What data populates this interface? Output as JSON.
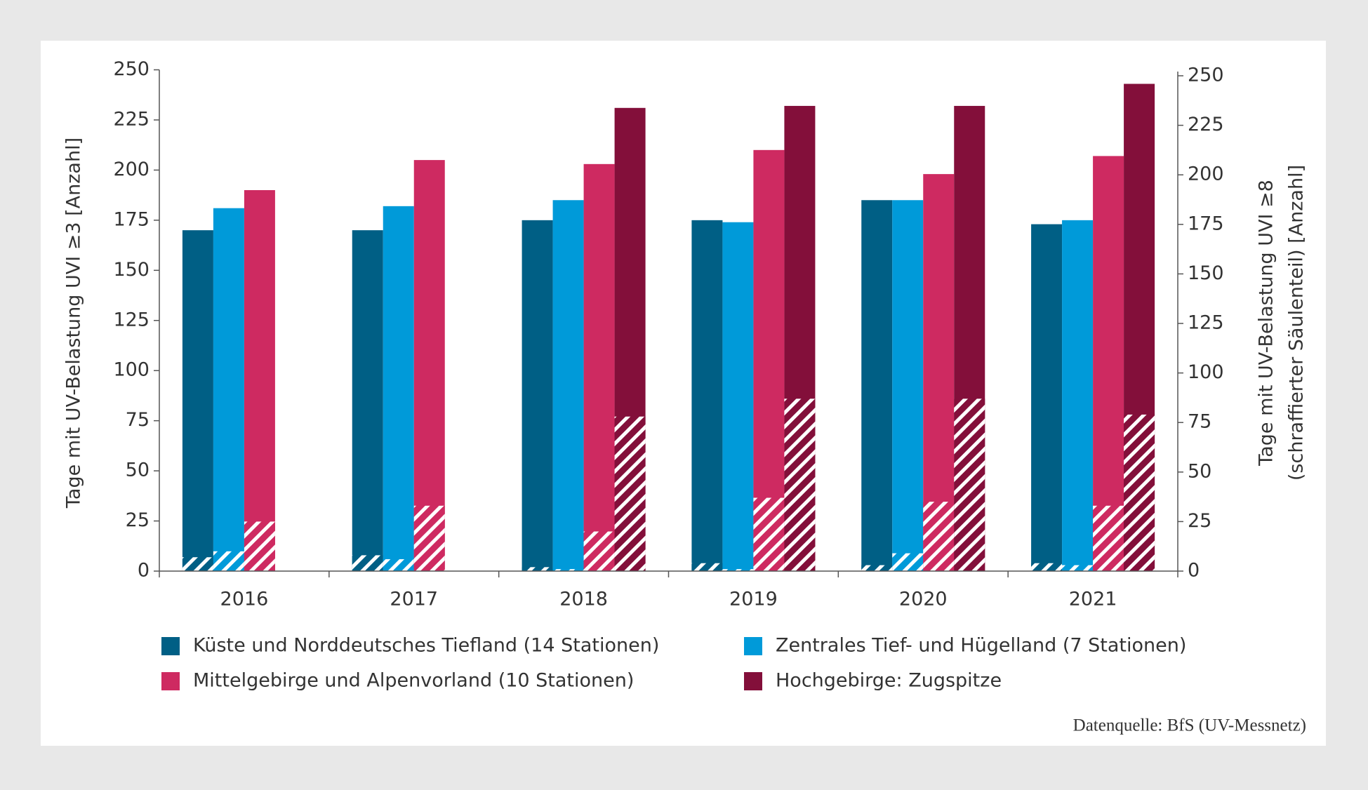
{
  "chart_data": {
    "type": "bar",
    "y_label": "Tage mit UV-Belastung UVI ≥3 [Anzahl]",
    "y2_label": [
      "Tage mit UV-Belastung UVI ≥8",
      "(schraffierter Säulenteil) [Anzahl]"
    ],
    "source": "Datenquelle: BfS (UV-Messnetz)",
    "categories": [
      "2016",
      "2017",
      "2018",
      "2019",
      "2020",
      "2021"
    ],
    "ylim": [
      0,
      250
    ],
    "yticks": [
      0,
      25,
      50,
      75,
      100,
      125,
      150,
      175,
      200,
      225,
      250
    ],
    "y2lim": [
      0,
      250
    ],
    "y2ticks": [
      0,
      25,
      50,
      75,
      100,
      125,
      150,
      175,
      200,
      225,
      250
    ],
    "series": [
      {
        "name": "Küste und Norddeutsches Tiefland (14 Stationen)",
        "color": "#005f85",
        "values": [
          170,
          170,
          175,
          175,
          185,
          173
        ],
        "hatched_values": [
          7,
          8,
          2,
          4,
          3,
          4
        ]
      },
      {
        "name": "Zentrales Tief- und Hügelland (7 Stationen)",
        "color": "#009ad9",
        "values": [
          181,
          182,
          185,
          174,
          185,
          175
        ],
        "hatched_values": [
          10,
          6,
          1,
          1,
          9,
          3
        ]
      },
      {
        "name": "Mittelgebirge und Alpenvorland (10 Stationen)",
        "color": "#ce2a61",
        "values": [
          190,
          205,
          203,
          210,
          198,
          207
        ],
        "hatched_values": [
          25,
          33,
          20,
          37,
          35,
          33
        ]
      },
      {
        "name": "Hochgebirge: Zugspitze",
        "color": "#830f3a",
        "values": [
          null,
          null,
          231,
          232,
          232,
          243
        ],
        "hatched_values": [
          null,
          null,
          78,
          87,
          87,
          79
        ]
      }
    ]
  }
}
